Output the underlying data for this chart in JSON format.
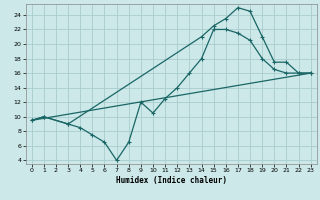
{
  "xlabel": "Humidex (Indice chaleur)",
  "bg_color": "#cce8e8",
  "grid_color": "#aacccc",
  "line_color": "#1a6666",
  "xlim": [
    -0.5,
    23.5
  ],
  "ylim": [
    3.5,
    25.5
  ],
  "xticks": [
    0,
    1,
    2,
    3,
    4,
    5,
    6,
    7,
    8,
    9,
    10,
    11,
    12,
    13,
    14,
    15,
    16,
    17,
    18,
    19,
    20,
    21,
    22,
    23
  ],
  "yticks": [
    4,
    6,
    8,
    10,
    12,
    14,
    16,
    18,
    20,
    22,
    24
  ],
  "line1_x": [
    0,
    23
  ],
  "line1_y": [
    9.5,
    16
  ],
  "line2_x": [
    0,
    1,
    3,
    4,
    5,
    6,
    7,
    8,
    9,
    10,
    11,
    12,
    13,
    14,
    15,
    16,
    17,
    18,
    19,
    20,
    21,
    22,
    23
  ],
  "line2_y": [
    9.5,
    10,
    9,
    8.5,
    7.5,
    6.5,
    4,
    6.5,
    12,
    10.5,
    12.5,
    14,
    16,
    18,
    22,
    22,
    21.5,
    20.5,
    18,
    16.5,
    16,
    16,
    16
  ],
  "line3_x": [
    0,
    1,
    3,
    14,
    15,
    16,
    17,
    18,
    19,
    20,
    21,
    22,
    23
  ],
  "line3_y": [
    9.5,
    10,
    9,
    21,
    22.5,
    23.5,
    25,
    24.5,
    21,
    17.5,
    17.5,
    16,
    16
  ],
  "line4_x": [
    0,
    23
  ],
  "line4_y": [
    9.5,
    16
  ]
}
